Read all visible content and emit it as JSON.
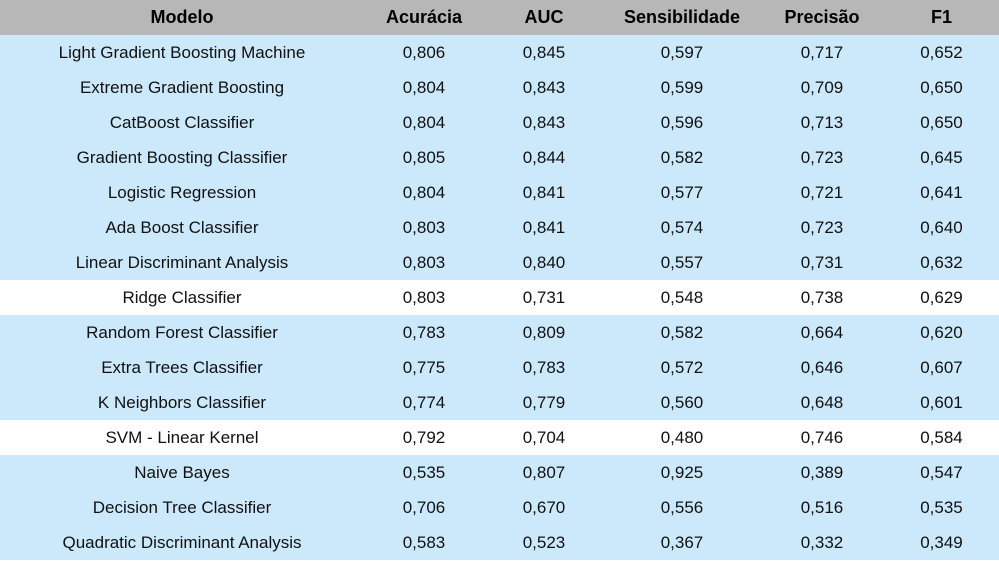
{
  "table": {
    "headers": [
      "Modelo",
      "Acurácia",
      "AUC",
      "Sensibilidade",
      "Precisão",
      "F1"
    ],
    "rows": [
      {
        "cells": [
          "Light Gradient Boosting Machine",
          "0,806",
          "0,845",
          "0,597",
          "0,717",
          "0,652"
        ],
        "highlight": true
      },
      {
        "cells": [
          "Extreme Gradient Boosting",
          "0,804",
          "0,843",
          "0,599",
          "0,709",
          "0,650"
        ],
        "highlight": true
      },
      {
        "cells": [
          "CatBoost Classifier",
          "0,804",
          "0,843",
          "0,596",
          "0,713",
          "0,650"
        ],
        "highlight": true
      },
      {
        "cells": [
          "Gradient Boosting Classifier",
          "0,805",
          "0,844",
          "0,582",
          "0,723",
          "0,645"
        ],
        "highlight": true
      },
      {
        "cells": [
          "Logistic Regression",
          "0,804",
          "0,841",
          "0,577",
          "0,721",
          "0,641"
        ],
        "highlight": true
      },
      {
        "cells": [
          "Ada Boost Classifier",
          "0,803",
          "0,841",
          "0,574",
          "0,723",
          "0,640"
        ],
        "highlight": true
      },
      {
        "cells": [
          "Linear Discriminant Analysis",
          "0,803",
          "0,840",
          "0,557",
          "0,731",
          "0,632"
        ],
        "highlight": true
      },
      {
        "cells": [
          "Ridge Classifier",
          "0,803",
          "0,731",
          "0,548",
          "0,738",
          "0,629"
        ],
        "highlight": false
      },
      {
        "cells": [
          "Random Forest Classifier",
          "0,783",
          "0,809",
          "0,582",
          "0,664",
          "0,620"
        ],
        "highlight": true
      },
      {
        "cells": [
          "Extra Trees Classifier",
          "0,775",
          "0,783",
          "0,572",
          "0,646",
          "0,607"
        ],
        "highlight": true
      },
      {
        "cells": [
          "K Neighbors Classifier",
          "0,774",
          "0,779",
          "0,560",
          "0,648",
          "0,601"
        ],
        "highlight": true
      },
      {
        "cells": [
          "SVM - Linear Kernel",
          "0,792",
          "0,704",
          "0,480",
          "0,746",
          "0,584"
        ],
        "highlight": false
      },
      {
        "cells": [
          "Naive Bayes",
          "0,535",
          "0,807",
          "0,925",
          "0,389",
          "0,547"
        ],
        "highlight": true
      },
      {
        "cells": [
          "Decision Tree Classifier",
          "0,706",
          "0,670",
          "0,556",
          "0,516",
          "0,535"
        ],
        "highlight": true
      },
      {
        "cells": [
          "Quadratic Discriminant Analysis",
          "0,583",
          "0,523",
          "0,367",
          "0,332",
          "0,349"
        ],
        "highlight": true
      }
    ]
  },
  "colors": {
    "header_bg": "#b7b7b7",
    "highlight_row_bg": "#cce9fb",
    "plain_row_bg": "#ffffff"
  }
}
